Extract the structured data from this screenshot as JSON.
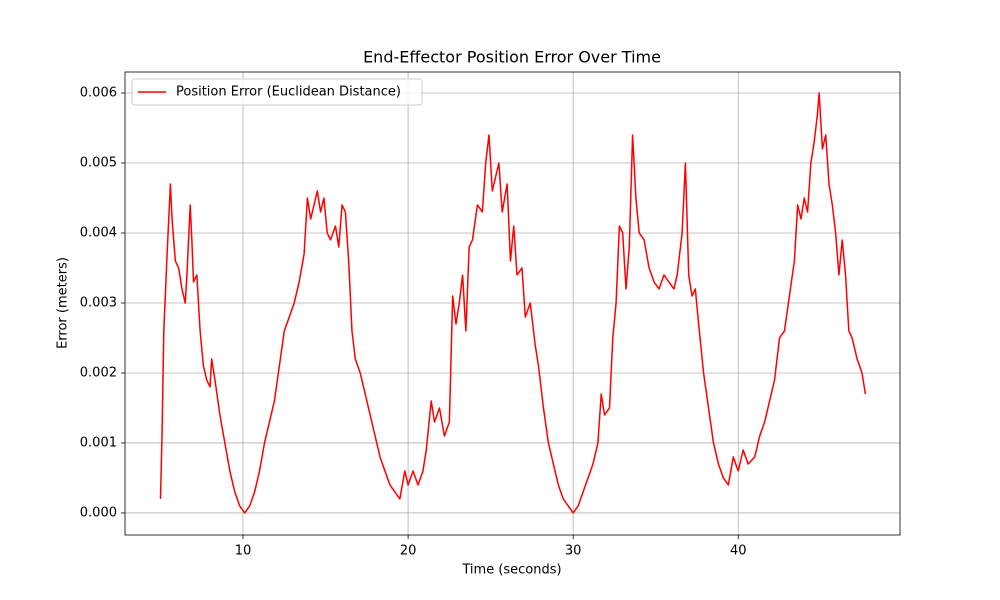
{
  "chart_data": {
    "type": "line",
    "title": "End-Effector Position Error Over Time",
    "xlabel": "Time (seconds)",
    "ylabel": "Error (meters)",
    "grid": true,
    "legend": "upper left",
    "xlim": [
      2.85,
      49.8
    ],
    "ylim": [
      -0.000315,
      0.0063
    ],
    "xticks": [
      10,
      20,
      30,
      40
    ],
    "yticks": [
      {
        "value": 0,
        "label": "0.000"
      },
      {
        "value": 0.001,
        "label": "0.001"
      },
      {
        "value": 0.002,
        "label": "0.002"
      },
      {
        "value": 0.003,
        "label": "0.003"
      },
      {
        "value": 0.004,
        "label": "0.004"
      },
      {
        "value": 0.005,
        "label": "0.005"
      },
      {
        "value": 0.006,
        "label": "0.006"
      }
    ],
    "x": [
      5.0,
      5.1,
      5.2,
      5.4,
      5.5,
      5.6,
      5.7,
      5.9,
      6.1,
      6.3,
      6.5,
      6.6,
      6.8,
      6.9,
      7.0,
      7.2,
      7.4,
      7.6,
      7.8,
      8.0,
      8.1,
      8.3,
      8.6,
      8.9,
      9.2,
      9.5,
      9.8,
      10.1,
      10.4,
      10.7,
      11.0,
      11.3,
      11.6,
      11.9,
      12.2,
      12.5,
      12.8,
      13.1,
      13.4,
      13.7,
      13.9,
      14.1,
      14.3,
      14.5,
      14.7,
      14.9,
      15.1,
      15.3,
      15.6,
      15.8,
      16.0,
      16.2,
      16.4,
      16.6,
      16.8,
      17.1,
      17.4,
      17.7,
      18.0,
      18.3,
      18.6,
      18.9,
      19.2,
      19.5,
      19.8,
      20.0,
      20.3,
      20.6,
      20.9,
      21.1,
      21.4,
      21.6,
      21.9,
      22.2,
      22.5,
      22.7,
      22.9,
      23.1,
      23.3,
      23.5,
      23.7,
      23.9,
      24.2,
      24.5,
      24.7,
      24.9,
      25.1,
      25.3,
      25.5,
      25.7,
      26.0,
      26.2,
      26.4,
      26.6,
      26.9,
      27.1,
      27.4,
      27.7,
      27.9,
      28.2,
      28.5,
      28.8,
      29.1,
      29.4,
      29.7,
      30.0,
      30.3,
      30.6,
      30.9,
      31.2,
      31.5,
      31.7,
      31.9,
      32.2,
      32.4,
      32.6,
      32.8,
      33.0,
      33.2,
      33.4,
      33.6,
      33.8,
      34.0,
      34.3,
      34.6,
      34.9,
      35.2,
      35.5,
      35.8,
      36.1,
      36.3,
      36.6,
      36.8,
      37.0,
      37.2,
      37.4,
      37.6,
      37.9,
      38.2,
      38.5,
      38.8,
      39.1,
      39.4,
      39.7,
      40.0,
      40.3,
      40.6,
      41.0,
      41.3,
      41.6,
      41.9,
      42.2,
      42.5,
      42.8,
      43.1,
      43.4,
      43.6,
      43.8,
      44.0,
      44.2,
      44.4,
      44.6,
      44.8,
      44.9,
      45.1,
      45.3,
      45.5,
      45.7,
      45.9,
      46.1,
      46.3,
      46.5,
      46.7,
      46.9,
      47.2,
      47.5,
      47.7
    ],
    "series": [
      {
        "name": "Position Error (Euclidean Distance)",
        "color": "#ff0000",
        "values": [
          0.0002,
          0.0012,
          0.0026,
          0.0037,
          0.0042,
          0.0047,
          0.0042,
          0.0036,
          0.0035,
          0.0032,
          0.003,
          0.0034,
          0.0044,
          0.0039,
          0.0033,
          0.0034,
          0.0026,
          0.0021,
          0.0019,
          0.0018,
          0.0022,
          0.0019,
          0.0014,
          0.001,
          0.0006,
          0.0003,
          0.0001,
          0.0,
          0.0001,
          0.0003,
          0.0006,
          0.001,
          0.0013,
          0.0016,
          0.0021,
          0.0026,
          0.0028,
          0.003,
          0.0033,
          0.0037,
          0.0045,
          0.0042,
          0.0044,
          0.0046,
          0.0043,
          0.0045,
          0.004,
          0.0039,
          0.0041,
          0.0038,
          0.0044,
          0.0043,
          0.0036,
          0.0026,
          0.0022,
          0.002,
          0.0017,
          0.0014,
          0.0011,
          0.0008,
          0.0006,
          0.0004,
          0.0003,
          0.0002,
          0.0006,
          0.0004,
          0.0006,
          0.0004,
          0.0006,
          0.0009,
          0.0016,
          0.0013,
          0.0015,
          0.0011,
          0.0013,
          0.0031,
          0.0027,
          0.003,
          0.0034,
          0.0026,
          0.0038,
          0.0039,
          0.0044,
          0.0043,
          0.005,
          0.0054,
          0.0046,
          0.0048,
          0.005,
          0.0043,
          0.0047,
          0.0036,
          0.0041,
          0.0034,
          0.0035,
          0.0028,
          0.003,
          0.0024,
          0.0021,
          0.0015,
          0.001,
          0.0007,
          0.0004,
          0.0002,
          0.0001,
          0.0,
          0.0001,
          0.0003,
          0.0005,
          0.0007,
          0.001,
          0.0017,
          0.0014,
          0.0015,
          0.0025,
          0.003,
          0.0041,
          0.004,
          0.0032,
          0.0038,
          0.0054,
          0.0045,
          0.004,
          0.0039,
          0.0035,
          0.0033,
          0.0032,
          0.0034,
          0.0033,
          0.0032,
          0.0034,
          0.004,
          0.005,
          0.0034,
          0.0031,
          0.0032,
          0.0027,
          0.002,
          0.0015,
          0.001,
          0.0007,
          0.0005,
          0.0004,
          0.0008,
          0.0006,
          0.0009,
          0.0007,
          0.0008,
          0.0011,
          0.0013,
          0.0016,
          0.0019,
          0.0025,
          0.0026,
          0.0031,
          0.0036,
          0.0044,
          0.0042,
          0.0045,
          0.0043,
          0.005,
          0.0053,
          0.0057,
          0.006,
          0.0052,
          0.0054,
          0.0047,
          0.0044,
          0.004,
          0.0034,
          0.0039,
          0.0034,
          0.0026,
          0.0025,
          0.0022,
          0.002,
          0.0017
        ]
      }
    ]
  }
}
